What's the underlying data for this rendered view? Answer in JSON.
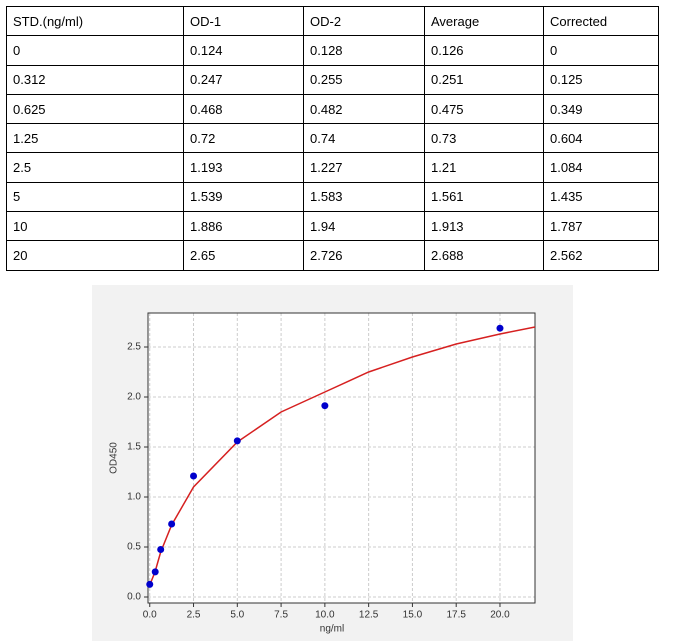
{
  "table": {
    "header": [
      "STD.(ng/ml)",
      "OD-1",
      "OD-2",
      "Average",
      "Corrected"
    ],
    "rows": [
      [
        "0",
        "0.124",
        "0.128",
        "0.126",
        "0"
      ],
      [
        "0.312",
        "0.247",
        "0.255",
        "0.251",
        "0.125"
      ],
      [
        "0.625",
        "0.468",
        "0.482",
        "0.475",
        "0.349"
      ],
      [
        "1.25",
        "0.72",
        "0.74",
        "0.73",
        "0.604"
      ],
      [
        "2.5",
        "1.193",
        "1.227",
        "1.21",
        "1.084"
      ],
      [
        "5",
        "1.539",
        "1.583",
        "1.561",
        "1.435"
      ],
      [
        "10",
        "1.886",
        "1.94",
        "1.913",
        "1.787"
      ],
      [
        "20",
        "2.65",
        "2.726",
        "2.688",
        "2.562"
      ]
    ]
  },
  "chart_data": {
    "type": "scatter",
    "x_label": "ng/ml",
    "y_label": "OD450",
    "xlim": [
      -0.1,
      22
    ],
    "ylim": [
      -0.06,
      2.84
    ],
    "xticks": [
      {
        "value": 0,
        "label": "0.0"
      },
      {
        "value": 2.5,
        "label": "2.5"
      },
      {
        "value": 5,
        "label": "5.0"
      },
      {
        "value": 7.5,
        "label": "7.5"
      },
      {
        "value": 10,
        "label": "10.0"
      },
      {
        "value": 12.5,
        "label": "12.5"
      },
      {
        "value": 15,
        "label": "15.0"
      },
      {
        "value": 17.5,
        "label": "17.5"
      },
      {
        "value": 20,
        "label": "20.0"
      }
    ],
    "yticks": [
      {
        "value": 0,
        "label": "0.0"
      },
      {
        "value": 0.5,
        "label": "0.5"
      },
      {
        "value": 1,
        "label": "1.0"
      },
      {
        "value": 1.5,
        "label": "1.5"
      },
      {
        "value": 2,
        "label": "2.0"
      },
      {
        "value": 2.5,
        "label": "2.5"
      }
    ],
    "grid": true,
    "points": {
      "color": "#0000cc",
      "x": [
        0,
        0.312,
        0.625,
        1.25,
        2.5,
        5,
        10,
        20
      ],
      "values": [
        0.126,
        0.251,
        0.475,
        0.73,
        1.21,
        1.561,
        1.913,
        2.688
      ]
    },
    "fit": {
      "color": "#d62020",
      "x": [
        0,
        0.3,
        0.625,
        1.25,
        2.5,
        5,
        7.5,
        10,
        12.5,
        15,
        17.5,
        20,
        22
      ],
      "values": [
        0.12,
        0.25,
        0.45,
        0.72,
        1.1,
        1.55,
        1.85,
        2.05,
        2.25,
        2.4,
        2.53,
        2.63,
        2.7
      ]
    }
  }
}
